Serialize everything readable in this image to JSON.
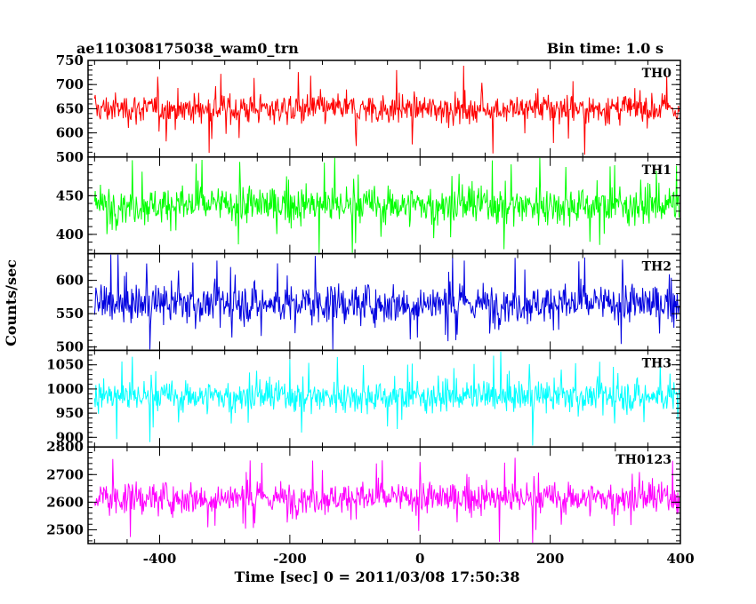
{
  "chart_data": {
    "type": "line",
    "title": "ae110308175038_wam0_trn",
    "bin_time": "Bin time: 1.0 s",
    "xlabel": "Time [sec] 0 = 2011/03/08 17:50:38",
    "ylabel": "Counts/sec",
    "xlim": [
      -510,
      400
    ],
    "x_ticks": [
      -400,
      -200,
      0,
      200,
      400
    ],
    "grid": false,
    "panels": [
      {
        "name": "TH0",
        "color": "#ff0000",
        "ylim": [
          550,
          750
        ],
        "y_ticks": [
          600,
          650,
          700,
          750
        ],
        "y_tick_labels": [
          "600",
          "650",
          "700",
          "750"
        ],
        "mean": 650,
        "amp": 40
      },
      {
        "name": "TH1",
        "color": "#00ff00",
        "ylim": [
          375,
          500
        ],
        "y_ticks": [
          400,
          450,
          500
        ],
        "y_tick_labels": [
          "400",
          "450",
          "500"
        ],
        "mean": 438,
        "amp": 32
      },
      {
        "name": "TH2",
        "color": "#0000e0",
        "ylim": [
          495,
          640
        ],
        "y_ticks": [
          500,
          550,
          600
        ],
        "y_tick_labels": [
          "500",
          "550",
          "600"
        ],
        "mean": 565,
        "amp": 38
      },
      {
        "name": "TH3",
        "color": "#00ffff",
        "ylim": [
          880,
          1080
        ],
        "y_ticks": [
          900,
          950,
          1000,
          1050
        ],
        "y_tick_labels": [
          "900",
          "950",
          "1000",
          "1050"
        ],
        "mean": 985,
        "amp": 42
      },
      {
        "name": "TH0123",
        "color": "#ff00ff",
        "ylim": [
          2450,
          2800
        ],
        "y_ticks": [
          2500,
          2600,
          2700,
          2800
        ],
        "y_tick_labels": [
          "2500",
          "2600",
          "2700",
          "2800"
        ],
        "mean": 2615,
        "amp": 75
      }
    ]
  }
}
